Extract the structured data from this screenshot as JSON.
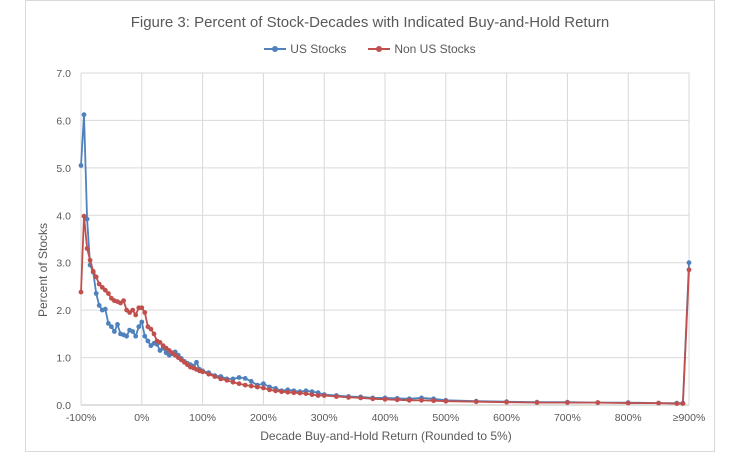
{
  "chart_data": {
    "type": "line",
    "title": "Figure 3: Percent of Stock-Decades with Indicated Buy-and-Hold Return",
    "xlabel": "Decade Buy-and-Hold Return (Rounded to 5%)",
    "ylabel": "Percent of Stocks",
    "xlim": [
      -100,
      900
    ],
    "ylim": [
      0,
      7
    ],
    "x_ticks": [
      "-100%",
      "0%",
      "100%",
      "200%",
      "300%",
      "400%",
      "500%",
      "600%",
      "700%",
      "800%",
      "≥900%"
    ],
    "y_ticks": [
      "0.0",
      "1.0",
      "2.0",
      "3.0",
      "4.0",
      "5.0",
      "6.0",
      "7.0"
    ],
    "grid": true,
    "legend": "top",
    "series": [
      {
        "name": "US Stocks",
        "color": "#4f81bd",
        "x": [
          -100,
          -95,
          -90,
          -85,
          -80,
          -75,
          -70,
          -65,
          -60,
          -55,
          -50,
          -45,
          -40,
          -35,
          -30,
          -25,
          -20,
          -15,
          -10,
          -5,
          0,
          5,
          10,
          15,
          20,
          25,
          30,
          35,
          40,
          45,
          50,
          55,
          60,
          65,
          70,
          75,
          80,
          85,
          90,
          95,
          100,
          110,
          120,
          130,
          140,
          150,
          160,
          170,
          180,
          190,
          200,
          210,
          220,
          230,
          240,
          250,
          260,
          270,
          280,
          290,
          300,
          320,
          340,
          360,
          380,
          400,
          420,
          440,
          460,
          480,
          500,
          550,
          600,
          650,
          700,
          750,
          800,
          850,
          880,
          890,
          900
        ],
        "values": [
          5.05,
          6.12,
          3.92,
          2.95,
          2.8,
          2.35,
          2.1,
          2.0,
          2.02,
          1.72,
          1.65,
          1.55,
          1.7,
          1.5,
          1.48,
          1.45,
          1.58,
          1.55,
          1.45,
          1.65,
          1.75,
          1.45,
          1.35,
          1.25,
          1.3,
          1.28,
          1.15,
          1.2,
          1.1,
          1.05,
          1.08,
          1.12,
          1.05,
          0.98,
          0.92,
          0.88,
          0.85,
          0.82,
          0.9,
          0.75,
          0.72,
          0.68,
          0.62,
          0.6,
          0.55,
          0.55,
          0.58,
          0.56,
          0.5,
          0.42,
          0.45,
          0.38,
          0.35,
          0.3,
          0.32,
          0.3,
          0.28,
          0.3,
          0.28,
          0.26,
          0.22,
          0.2,
          0.18,
          0.17,
          0.15,
          0.15,
          0.14,
          0.13,
          0.15,
          0.13,
          0.1,
          0.08,
          0.07,
          0.06,
          0.06,
          0.05,
          0.05,
          0.04,
          0.04,
          0.04,
          3.0
        ]
      },
      {
        "name": "Non US Stocks",
        "color": "#c0504d",
        "x": [
          -100,
          -95,
          -90,
          -85,
          -80,
          -75,
          -70,
          -65,
          -60,
          -55,
          -50,
          -45,
          -40,
          -35,
          -30,
          -25,
          -20,
          -15,
          -10,
          -5,
          0,
          5,
          10,
          15,
          20,
          25,
          30,
          35,
          40,
          45,
          50,
          55,
          60,
          65,
          70,
          75,
          80,
          85,
          90,
          95,
          100,
          110,
          120,
          130,
          140,
          150,
          160,
          170,
          180,
          190,
          200,
          210,
          220,
          230,
          240,
          250,
          260,
          270,
          280,
          290,
          300,
          320,
          340,
          360,
          380,
          400,
          420,
          440,
          460,
          480,
          500,
          550,
          600,
          650,
          700,
          750,
          800,
          850,
          880,
          890,
          900
        ],
        "values": [
          2.38,
          3.98,
          3.3,
          3.05,
          2.82,
          2.7,
          2.55,
          2.48,
          2.42,
          2.35,
          2.25,
          2.2,
          2.18,
          2.15,
          2.2,
          2.0,
          1.95,
          2.0,
          1.9,
          2.05,
          2.05,
          1.95,
          1.65,
          1.6,
          1.5,
          1.35,
          1.32,
          1.25,
          1.2,
          1.15,
          1.1,
          1.05,
          1.0,
          0.95,
          0.9,
          0.85,
          0.8,
          0.78,
          0.75,
          0.72,
          0.7,
          0.65,
          0.6,
          0.55,
          0.52,
          0.48,
          0.45,
          0.42,
          0.4,
          0.38,
          0.36,
          0.32,
          0.3,
          0.28,
          0.27,
          0.26,
          0.25,
          0.24,
          0.22,
          0.2,
          0.2,
          0.18,
          0.16,
          0.15,
          0.13,
          0.12,
          0.11,
          0.1,
          0.1,
          0.09,
          0.08,
          0.07,
          0.06,
          0.05,
          0.05,
          0.05,
          0.04,
          0.04,
          0.03,
          0.03,
          2.85
        ]
      }
    ]
  }
}
